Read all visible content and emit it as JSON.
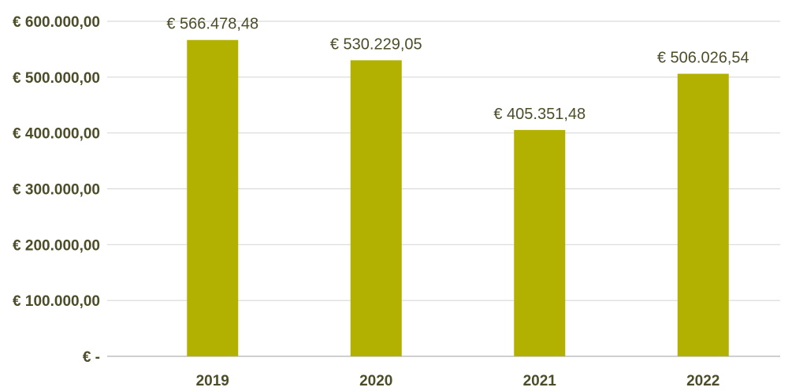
{
  "chart_data": {
    "type": "bar",
    "categories": [
      "2019",
      "2020",
      "2021",
      "2022"
    ],
    "values": [
      566478.48,
      530229.05,
      405351.48,
      506026.54
    ],
    "data_labels": [
      "€ 566.478,48",
      "€ 530.229,05",
      "€ 405.351,48",
      "€ 506.026,54"
    ],
    "y_tick_labels": [
      "€ -",
      "€ 100.000,00",
      "€ 200.000,00",
      "€ 300.000,00",
      "€ 400.000,00",
      "€ 500.000,00",
      "€ 600.000,00"
    ],
    "y_ticks": [
      0,
      100000,
      200000,
      300000,
      400000,
      500000,
      600000
    ],
    "ylim": [
      0,
      600000
    ],
    "title": "",
    "xlabel": "",
    "ylabel": "",
    "grid": true,
    "legend": "none",
    "bar_color": "#b2b000",
    "text_color": "#4d4d2a"
  }
}
